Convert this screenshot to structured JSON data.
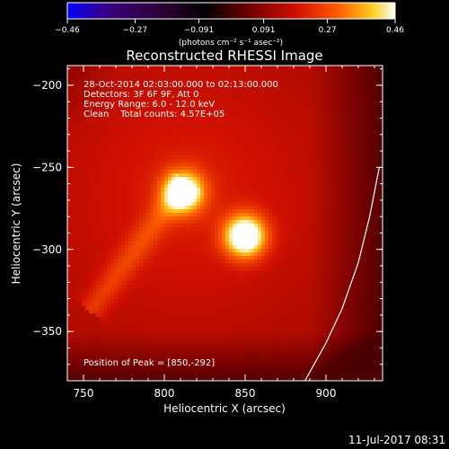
{
  "chart_data": {
    "type": "heatmap",
    "title": "Reconstructed RHESSI Image",
    "xlabel": "Heliocentric X (arcsec)",
    "ylabel": "Heliocentric Y (arcsec)",
    "xlim": [
      740,
      935
    ],
    "ylim": [
      -380,
      -188
    ],
    "x_ticks": [
      750,
      800,
      850,
      900
    ],
    "y_ticks": [
      -200,
      -250,
      -300,
      -350
    ],
    "colorbar": {
      "min": -0.46,
      "max": 0.46,
      "tick_values": [
        -0.46,
        -0.27,
        -0.091,
        0.091,
        0.27,
        0.46
      ],
      "tick_labels": [
        "-0.46",
        "-0.27",
        "-0.091",
        "0.091",
        "0.27",
        "0.46"
      ],
      "units": "(photons cm⁻² s⁻¹ asec⁻²)",
      "colormap": [
        "#0000ff",
        "#3a0080",
        "#2a0030",
        "#000000",
        "#6a0000",
        "#d01000",
        "#ff6000",
        "#ffcc20",
        "#ffffff"
      ]
    },
    "sources": [
      {
        "x": 812,
        "y": -265,
        "peak": 0.4,
        "sigma": 9
      },
      {
        "x": 850,
        "y": -292,
        "peak": 0.46,
        "sigma": 9
      }
    ],
    "limb_curve": [
      [
        887,
        -380
      ],
      [
        900,
        -357
      ],
      [
        910,
        -336
      ],
      [
        920,
        -308
      ],
      [
        927,
        -280
      ],
      [
        933,
        -250
      ]
    ],
    "annotations": {
      "time_range": "28-Oct-2014 02:03:00.000 to 02:13:00.000",
      "detectors": "Detectors: 3F 6F 9F, Att 0",
      "energy_range": "Energy Range: 6.0 - 12.0 keV",
      "clean_counts": "Clean    Total counts: 4.57E+05",
      "peak_position": "Position of Peak = [850,-292]"
    },
    "footer_date": "11-Jul-2017 08:31"
  }
}
